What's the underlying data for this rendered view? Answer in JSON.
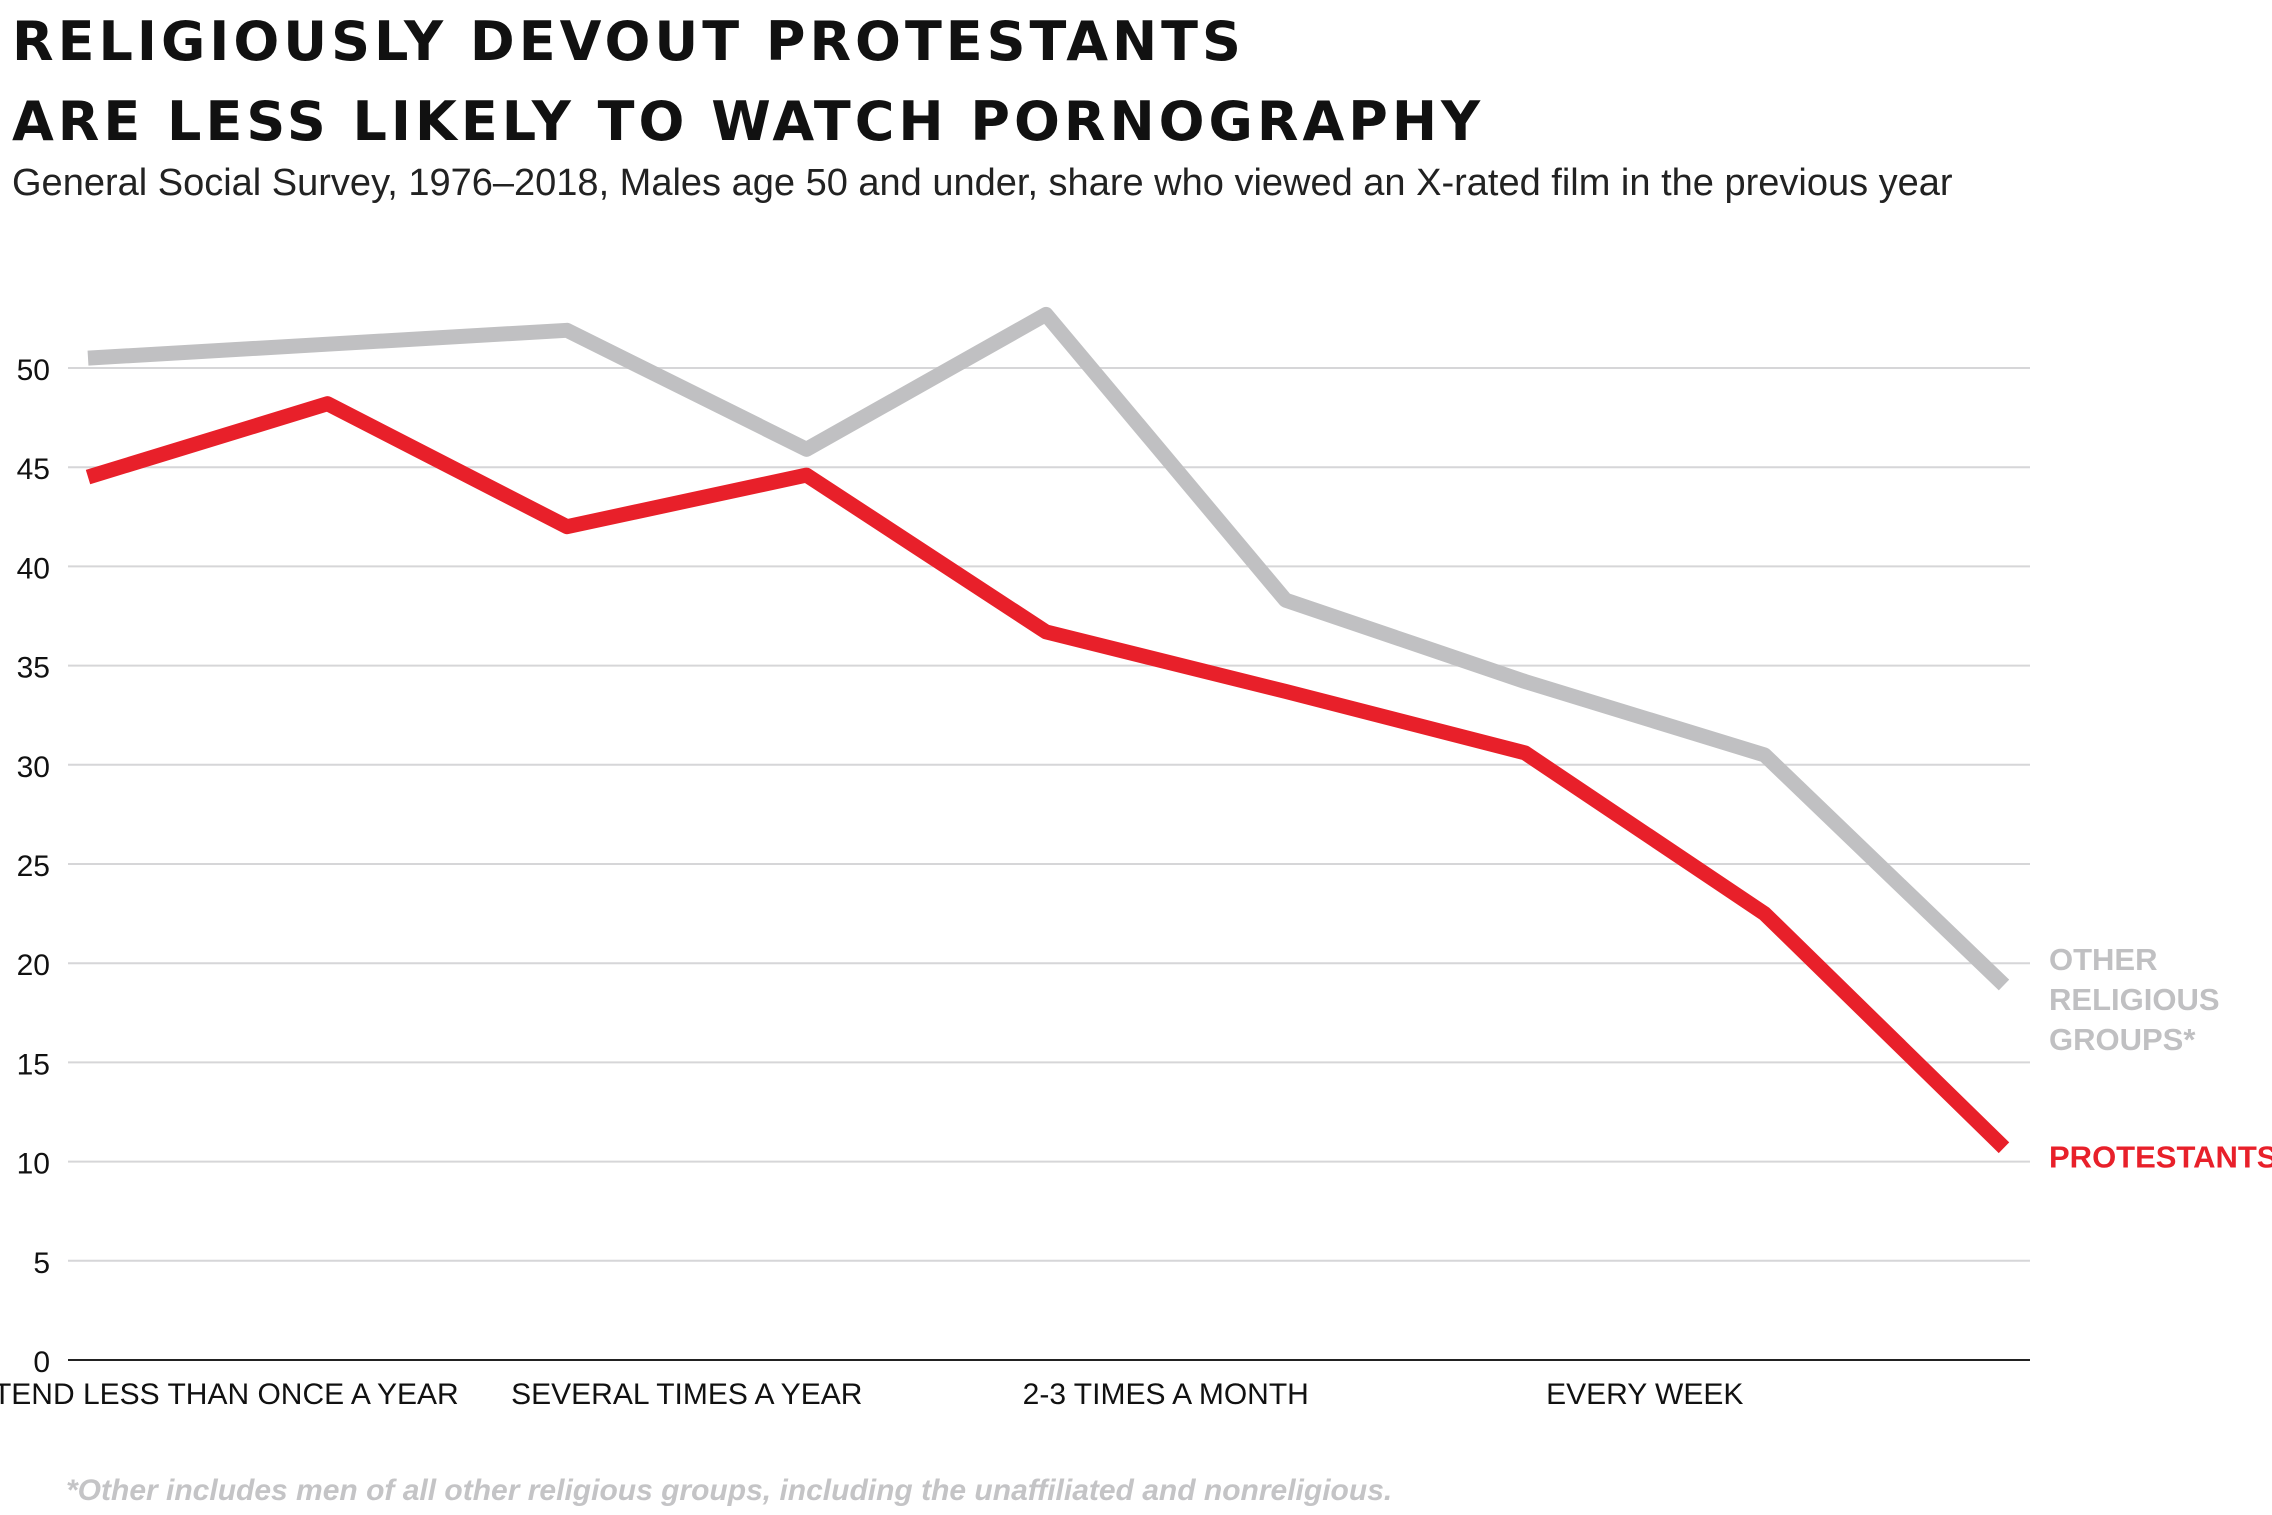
{
  "chart_data": {
    "type": "line",
    "title_lines": [
      "RELIGIOUSLY DEVOUT PROTESTANTS",
      "ARE LESS LIKELY TO WATCH PORNOGRAPHY"
    ],
    "subtitle": "General Social Survey, 1976–2018, Males age 50 and under, share who viewed an X-rated film in the previous year",
    "footnote": "*Other includes men of all other religious groups, including the unaffiliated and nonreligious.",
    "xlabel": "",
    "ylabel": "",
    "ylim": [
      0,
      50
    ],
    "yticks": [
      0,
      5,
      10,
      15,
      20,
      25,
      30,
      35,
      40,
      45,
      50
    ],
    "grid": true,
    "legend_placement": "right, at line ends",
    "x_tick_labels": [
      "ATTEND LESS THAN ONCE A YEAR",
      "SEVERAL TIMES A YEAR",
      "2-3 TIMES A MONTH",
      "EVERY WEEK"
    ],
    "x_tick_positions": [
      0.5,
      2.5,
      4.5,
      6.5
    ],
    "x": [
      0,
      1,
      2,
      3,
      4,
      5,
      6,
      7,
      8
    ],
    "series": [
      {
        "name": "OTHER RELIGIOUS GROUPS*",
        "label_lines": [
          "OTHER",
          "RELIGIOUS",
          "GROUPS*"
        ],
        "color": "#c0c0c2",
        "values": [
          50.5,
          51.2,
          51.9,
          45.9,
          52.7,
          38.3,
          34.2,
          30.5,
          18.9
        ]
      },
      {
        "name": "PROTESTANTS",
        "label_lines": [
          "PROTESTANTS"
        ],
        "color": "#e8202a",
        "values": [
          44.5,
          48.2,
          42.0,
          44.6,
          36.7,
          33.7,
          30.6,
          22.5,
          10.7
        ]
      }
    ]
  }
}
